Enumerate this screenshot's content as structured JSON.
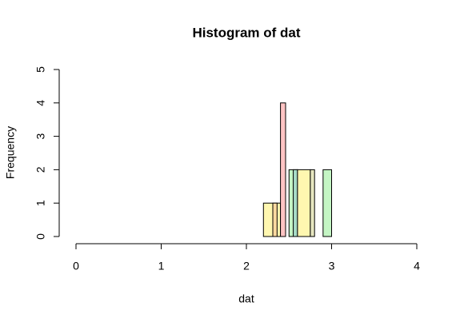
{
  "chart_data": {
    "type": "histogram",
    "title": "Histogram of dat",
    "xlabel": "dat",
    "ylabel": "Frequency",
    "xlim": [
      0,
      4
    ],
    "xticks": [
      0,
      1,
      2,
      3,
      4
    ],
    "ylim": [
      0,
      5
    ],
    "yticks": [
      0,
      1,
      2,
      3,
      4,
      5
    ],
    "series": [
      {
        "color": "#fff7b0",
        "bins": [
          2.2,
          2.4
        ],
        "values": [
          1
        ]
      },
      {
        "color": "#ffd9a0",
        "bins": [
          2.31,
          2.36
        ],
        "values": [
          1
        ]
      },
      {
        "color": "#ffc4c4",
        "bins": [
          2.4,
          2.46
        ],
        "values": [
          4
        ]
      },
      {
        "color": "#c4f5c4",
        "bins": [
          2.5,
          2.6
        ],
        "values": [
          2
        ]
      },
      {
        "color": "#a8dcc8",
        "bins": [
          2.55,
          2.6
        ],
        "values": [
          2
        ]
      },
      {
        "color": "#fff7b0",
        "bins": [
          2.6,
          2.75
        ],
        "values": [
          2
        ]
      },
      {
        "color": "#e6e6c0",
        "bins": [
          2.75,
          2.8
        ],
        "values": [
          2
        ]
      },
      {
        "color": "#c4f5c4",
        "bins": [
          2.9,
          3.0
        ],
        "values": [
          2
        ]
      }
    ]
  }
}
